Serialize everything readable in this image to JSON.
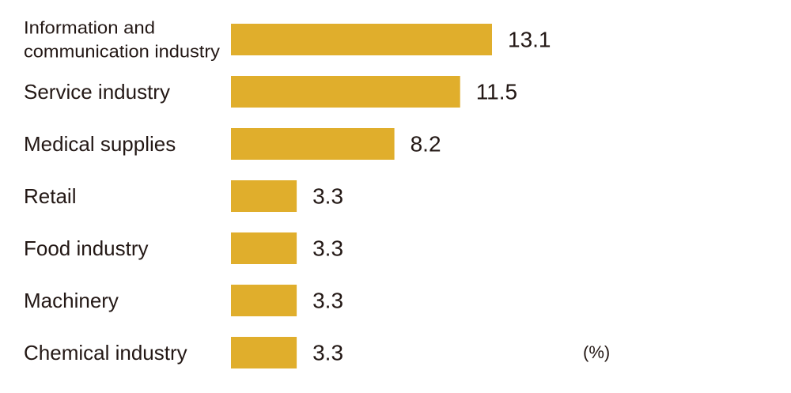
{
  "chart_data": {
    "type": "bar",
    "orientation": "horizontal",
    "categories": [
      [
        "Information and",
        "communication industry"
      ],
      [
        "Service industry"
      ],
      [
        "Medical supplies"
      ],
      [
        "Retail"
      ],
      [
        "Food industry"
      ],
      [
        "Machinery"
      ],
      [
        "Chemical industry"
      ]
    ],
    "values": [
      13.1,
      11.5,
      8.2,
      3.3,
      3.3,
      3.3,
      3.3
    ],
    "value_labels": [
      "13.1",
      "11.5",
      "8.2",
      "3.3",
      "3.3",
      "3.3",
      "3.3"
    ],
    "unit": "(%)",
    "bar_color": "#E0AE2C",
    "text_color": "#231815",
    "grid": false,
    "legend": "none"
  }
}
